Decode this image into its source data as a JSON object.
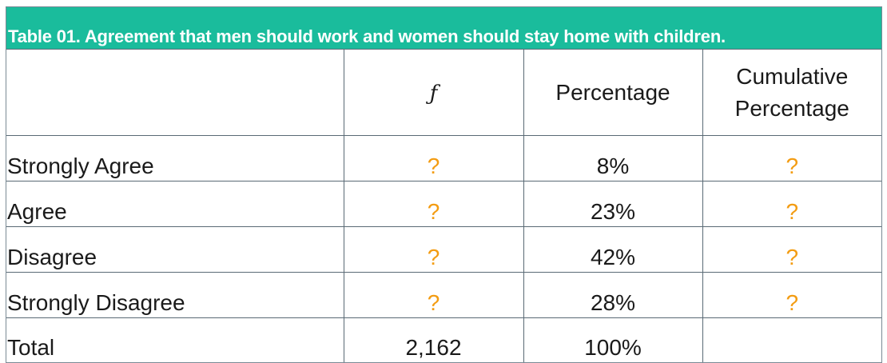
{
  "table": {
    "caption": "Table 01. Agreement that men should work and women should stay home with children.",
    "headers": {
      "label": "",
      "frequency": "ƒ",
      "percentage": "Percentage",
      "cumulative_line1": "Cumulative",
      "cumulative_line2": "Percentage"
    },
    "rows": [
      {
        "label": "Strongly Agree",
        "frequency": "?",
        "percentage": "8%",
        "cumulative": "?"
      },
      {
        "label": "Agree",
        "frequency": "?",
        "percentage": "23%",
        "cumulative": "?"
      },
      {
        "label": "Disagree",
        "frequency": "?",
        "percentage": "42%",
        "cumulative": "?"
      },
      {
        "label": "Strongly Disagree",
        "frequency": "?",
        "percentage": "28%",
        "cumulative": "?"
      }
    ],
    "total": {
      "label": "Total",
      "frequency": "2,162",
      "percentage": "100%",
      "cumulative": ""
    }
  },
  "colors": {
    "caption_background": "#1abc9c",
    "caption_text": "#ffffff",
    "unknown_marker": "#f39c12",
    "border": "#5a6a75"
  }
}
